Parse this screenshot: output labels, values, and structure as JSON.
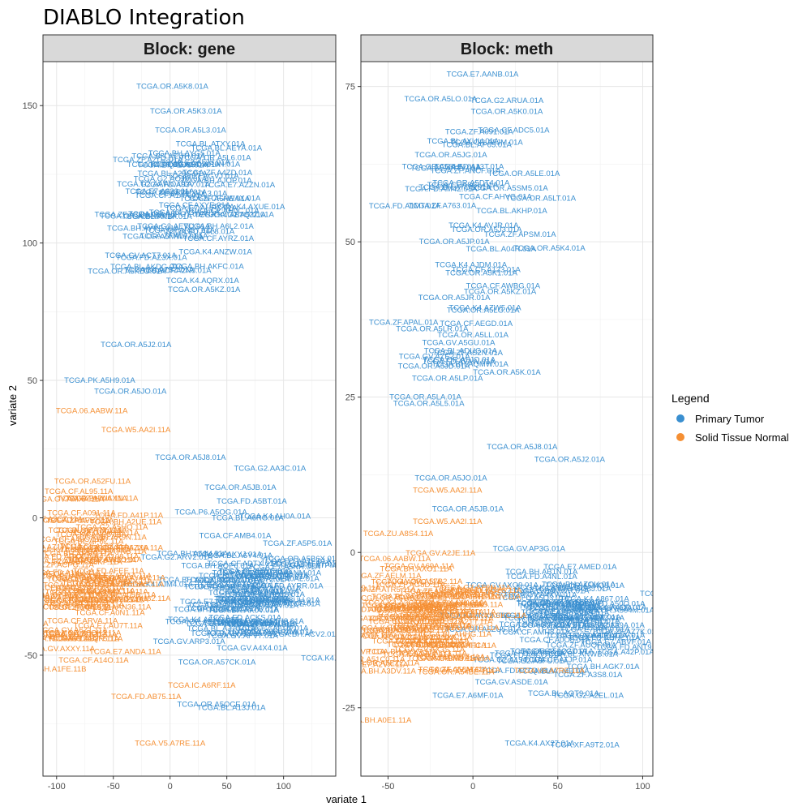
{
  "title": "DIABLO Integration",
  "xlabel": "variate 1",
  "ylabel": "variate 2",
  "legend": {
    "title": "Legend",
    "items": [
      {
        "label": "Primary Tumor",
        "color": "#3a8fd0"
      },
      {
        "label": "Solid Tissue Normal",
        "color": "#f58f33"
      }
    ]
  },
  "chart_data": [
    {
      "type": "scatter",
      "block": "Block: gene",
      "xlim": [
        -112,
        146
      ],
      "ylim": [
        -94,
        166
      ],
      "xticks": [
        -100,
        -50,
        0,
        50,
        100
      ],
      "yticks": [
        -50,
        0,
        50,
        100,
        150
      ],
      "labeled_points": [
        {
          "label": "TCGA.OR.A5K8.01A",
          "x": 2,
          "y": 157,
          "group": 0
        },
        {
          "label": "TCGA.OR.A5K3.01A",
          "x": 14,
          "y": 148,
          "group": 0
        },
        {
          "label": "TCGA.OR.A5L3.01A",
          "x": 18,
          "y": 141,
          "group": 0
        },
        {
          "label": "TCGA.OR.A5L6.01A",
          "x": 40,
          "y": 131,
          "group": 0
        },
        {
          "label": "TCGA.OR.A5J2.01A",
          "x": -30,
          "y": 63,
          "group": 0
        },
        {
          "label": "TCGA.PK.A5H9.01A",
          "x": -62,
          "y": 50,
          "group": 0
        },
        {
          "label": "TCGA.OR.A5JO.01A",
          "x": -35,
          "y": 46,
          "group": 0
        },
        {
          "label": "TCGA.OR.A5KZ.01A",
          "x": 30,
          "y": 83,
          "group": 0
        },
        {
          "label": "TCGA.G2.AA3C.01A",
          "x": 88,
          "y": 18,
          "group": 0
        },
        {
          "label": "TCGA.OR.A5JB.01A",
          "x": 62,
          "y": 11,
          "group": 0
        },
        {
          "label": "TCGA.FD.A5BT.01A",
          "x": 72,
          "y": 6,
          "group": 0
        },
        {
          "label": "TCGA.P6.A5OG.01A",
          "x": 36,
          "y": 2,
          "group": 0
        },
        {
          "label": "TCGA.OR.A5J8.01A",
          "x": 18,
          "y": 22,
          "group": 0
        },
        {
          "label": "TCGA.BL.A13J.01A",
          "x": 54,
          "y": -69,
          "group": 0
        },
        {
          "label": "TCGA.06.AABW.11A",
          "x": -69,
          "y": 39,
          "group": 1
        },
        {
          "label": "TCGA.W5.AA2I.11A",
          "x": -30,
          "y": 32,
          "group": 1
        },
        {
          "label": "TCGA.IC.A6RF.11A",
          "x": 28,
          "y": -61,
          "group": 1
        },
        {
          "label": "TCGA.V5.A7RE.11A",
          "x": 0,
          "y": -82,
          "group": 1
        },
        {
          "label": "TCGA.BH.A1FE.11B",
          "x": -105,
          "y": -55,
          "group": 1
        }
      ],
      "clusters": [
        {
          "cx": 20,
          "cy": 126,
          "sx": 24,
          "sy": 6,
          "n": 18,
          "group": 0
        },
        {
          "cx": 20,
          "cy": 110,
          "sx": 28,
          "sy": 7,
          "n": 26,
          "group": 0
        },
        {
          "cx": 0,
          "cy": 88,
          "sx": 22,
          "sy": 3,
          "n": 8,
          "group": 0
        },
        {
          "cx": 70,
          "cy": -28,
          "sx": 28,
          "sy": 12,
          "n": 80,
          "group": 0
        },
        {
          "cx": -75,
          "cy": -25,
          "sx": 24,
          "sy": 16,
          "n": 85,
          "group": 1
        }
      ]
    },
    {
      "type": "scatter",
      "block": "Block: meth",
      "xlim": [
        -66,
        106
      ],
      "ylim": [
        -36,
        79
      ],
      "xticks": [
        -50,
        0,
        50,
        100
      ],
      "yticks": [
        -25,
        0,
        25,
        50,
        75
      ],
      "labeled_points": [
        {
          "label": "TCGA.OR.A5LO.01A",
          "x": -19,
          "y": 73,
          "group": 0
        },
        {
          "label": "TCGA.OR.A5K0.01A",
          "x": 20,
          "y": 71,
          "group": 0
        },
        {
          "label": "TCGA.OR.A5JM.01A",
          "x": 8,
          "y": 66,
          "group": 0
        },
        {
          "label": "TCGA.OR.A5JG.01A",
          "x": -13,
          "y": 64,
          "group": 0
        },
        {
          "label": "TCGA.OR.A5LE.01A",
          "x": 30,
          "y": 61,
          "group": 0
        },
        {
          "label": "TCGA.OR.A5LT.01A",
          "x": 40,
          "y": 57,
          "group": 0
        },
        {
          "label": "TCGA.OR.A5J3.01A",
          "x": 8,
          "y": 52,
          "group": 0
        },
        {
          "label": "TCGA.OR.A5K4.01A",
          "x": 45,
          "y": 49,
          "group": 0
        },
        {
          "label": "TCGA.OR.A5JP.01A",
          "x": -11,
          "y": 50,
          "group": 0
        },
        {
          "label": "TCGA.OR.A5K1.01A",
          "x": 5,
          "y": 45,
          "group": 0
        },
        {
          "label": "TCGA.OR.A5KZ.01A",
          "x": 16,
          "y": 42,
          "group": 0
        },
        {
          "label": "TCGA.OR.A5JR.01A",
          "x": -11,
          "y": 41,
          "group": 0
        },
        {
          "label": "TCGA.OR.A5LG.01A",
          "x": 6,
          "y": 39,
          "group": 0
        },
        {
          "label": "TCGA.OR.A5LR.01A",
          "x": -24,
          "y": 36,
          "group": 0
        },
        {
          "label": "TCGA.OR.A5LL.01A",
          "x": 0,
          "y": 35,
          "group": 0
        },
        {
          "label": "TCGA.OR.A5JQ.01A",
          "x": -8,
          "y": 31,
          "group": 0
        },
        {
          "label": "TCGA.OR.A5JD.01A",
          "x": -23,
          "y": 30,
          "group": 0
        },
        {
          "label": "TCGA.OR.A5K.01A",
          "x": 20,
          "y": 29,
          "group": 0
        },
        {
          "label": "TCGA.OR.A5LP.01A",
          "x": -15,
          "y": 28,
          "group": 0
        },
        {
          "label": "TCGA.OR.A5LA.01A",
          "x": -28,
          "y": 25,
          "group": 0
        },
        {
          "label": "TCGA.OR.A5L5.01A",
          "x": -26,
          "y": 24,
          "group": 0
        },
        {
          "label": "TCGA.OR.A5J8.01A",
          "x": 29,
          "y": 17,
          "group": 0
        },
        {
          "label": "TCGA.OR.A5J2.01A",
          "x": 57,
          "y": 15,
          "group": 0
        },
        {
          "label": "TCGA.OR.A5JO.01A",
          "x": -13,
          "y": 12,
          "group": 0
        },
        {
          "label": "TCGA.OR.A5JB.01A",
          "x": -3,
          "y": 7,
          "group": 0
        },
        {
          "label": "TCGA.FD.A43N.01A",
          "x": 73,
          "y": -9,
          "group": 0
        },
        {
          "label": "TCGA.A3L.01A",
          "x": 71,
          "y": -11,
          "group": 0
        },
        {
          "label": "TCGA.A42P.01A",
          "x": 90,
          "y": -16,
          "group": 0
        },
        {
          "label": "TCGA.E7.A6MF.01A",
          "x": -3,
          "y": -23,
          "group": 0
        },
        {
          "label": "TCGA.G2.A2EL.01A",
          "x": 68,
          "y": -23,
          "group": 0
        },
        {
          "label": "TCGA.XF.A9T2.01A",
          "x": 66,
          "y": -31,
          "group": 0
        },
        {
          "label": "TCGA.W5.AA2I.11A",
          "x": -15,
          "y": 10,
          "group": 1
        },
        {
          "label": "TCGA.W5.AA2I.11A",
          "x": -15,
          "y": 5,
          "group": 1
        },
        {
          "label": "TCGA.ZU.A8S4.11A",
          "x": -44,
          "y": 3,
          "group": 1
        },
        {
          "label": "TCGA.06.AABW.11A",
          "x": -46,
          "y": -1,
          "group": 1
        },
        {
          "label": "TCGA.V5.A7RE.11A",
          "x": 45,
          "y": -19,
          "group": 1
        },
        {
          "label": "TCGA.BH.A0E1.11A",
          "x": -57,
          "y": -27,
          "group": 1
        }
      ],
      "clusters": [
        {
          "cx": 0,
          "cy": 57,
          "sx": 18,
          "sy": 8,
          "n": 26,
          "group": 0
        },
        {
          "cx": 0,
          "cy": 33,
          "sx": 12,
          "sy": 2.5,
          "n": 8,
          "group": 0
        },
        {
          "cx": 52,
          "cy": -11,
          "sx": 22,
          "sy": 5,
          "n": 70,
          "group": 0
        },
        {
          "cx": -30,
          "cy": -11,
          "sx": 17,
          "sy": 4.5,
          "n": 85,
          "group": 1
        }
      ]
    }
  ]
}
